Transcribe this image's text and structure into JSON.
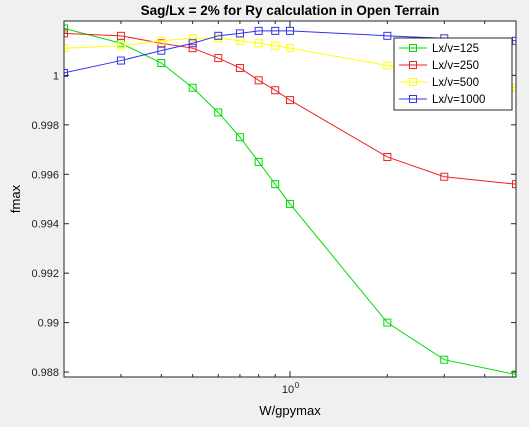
{
  "chart_data": {
    "type": "line",
    "title": "Sag/Lx = 2% for Ry calculation in Open Terrain",
    "xlabel": "W/gpymax",
    "ylabel": "fmax",
    "xscale": "log",
    "xlim": [
      0.2,
      5
    ],
    "ylim": [
      0.9878,
      1.0022
    ],
    "grid": false,
    "legend_position": "top-right",
    "x": [
      0.2,
      0.3,
      0.4,
      0.5,
      0.6,
      0.7,
      0.8,
      0.9,
      1.0,
      2.0,
      3.0,
      5.0
    ],
    "x_tick_labels": [
      {
        "value": 1,
        "label": "10",
        "superscript": "0"
      }
    ],
    "y_ticks": [
      0.988,
      0.99,
      0.992,
      0.994,
      0.996,
      0.998,
      1
    ],
    "y_tick_labels": [
      "0.988",
      "0.99",
      "0.992",
      "0.994",
      "0.996",
      "0.998",
      "1"
    ],
    "series": [
      {
        "name": "Lx/v=125",
        "color": "#00dd00",
        "values": [
          1.0019,
          1.0013,
          1.0005,
          0.9995,
          0.9985,
          0.9975,
          0.9965,
          0.9956,
          0.9948,
          0.99,
          0.9885,
          0.9879
        ]
      },
      {
        "name": "Lx/v=250",
        "color": "#ee2222",
        "values": [
          1.0017,
          1.0016,
          1.0013,
          1.0011,
          1.0007,
          1.0003,
          0.9998,
          0.9994,
          0.999,
          0.9967,
          0.9959,
          0.9956
        ]
      },
      {
        "name": "Lx/v=500",
        "color": "#ffff00",
        "values": [
          1.0011,
          1.0012,
          1.0014,
          1.0015,
          1.0015,
          1.0014,
          1.0013,
          1.0012,
          1.0011,
          1.0004,
          1.0001,
          0.9995
        ]
      },
      {
        "name": "Lx/v=1000",
        "color": "#3333ee",
        "values": [
          1.0001,
          1.0006,
          1.001,
          1.0013,
          1.0016,
          1.0017,
          1.0018,
          1.0018,
          1.0018,
          1.0016,
          1.0015,
          1.0014
        ]
      }
    ]
  }
}
